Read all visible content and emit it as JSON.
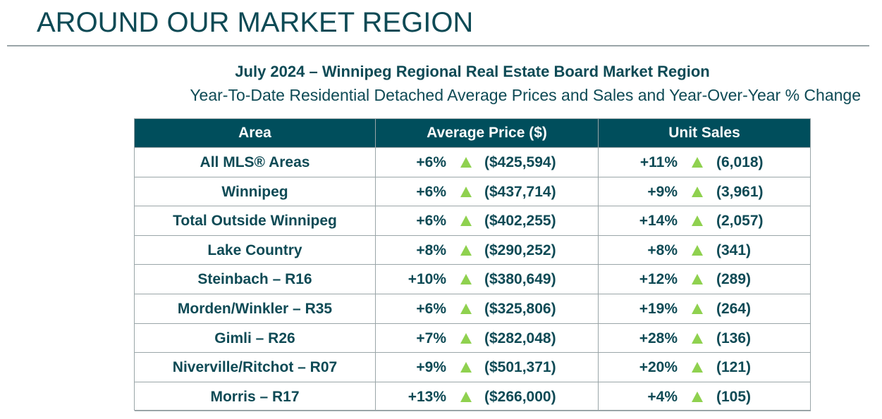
{
  "header": {
    "title": "AROUND OUR MARKET REGION"
  },
  "table": {
    "title": "July 2024 – Winnipeg Regional Real Estate Board Market Region",
    "subtitle": "Year-To-Date Residential Detached Average Prices and Sales and Year-Over-Year % Change",
    "columns": [
      "Area",
      "Average Price ($)",
      "Unit Sales"
    ],
    "rows": [
      [
        "All MLS® Areas",
        "+6%",
        "($425,594)",
        "+11%",
        "(6,018)"
      ],
      [
        "Winnipeg",
        "+6%",
        "($437,714)",
        "+9%",
        "(3,961)"
      ],
      [
        "Total Outside Winnipeg",
        "+6%",
        "($402,255)",
        "+14%",
        "(2,057)"
      ],
      [
        "Lake Country",
        "+8%",
        "($290,252)",
        "+8%",
        "(341)"
      ],
      [
        "Steinbach – R16",
        "+10%",
        "($380,649)",
        "+12%",
        "(289)"
      ],
      [
        "Morden/Winkler – R35",
        "+6%",
        "($325,806)",
        "+19%",
        "(264)"
      ],
      [
        "Gimli – R26",
        "+7%",
        "($282,048)",
        "+28%",
        "(136)"
      ],
      [
        "Niverville/Ritchot – R07",
        "+9%",
        "($501,371)",
        "+20%",
        "(121)"
      ],
      [
        "Morris – R17",
        "+13%",
        "($266,000)",
        "+4%",
        "(105)"
      ]
    ]
  }
}
